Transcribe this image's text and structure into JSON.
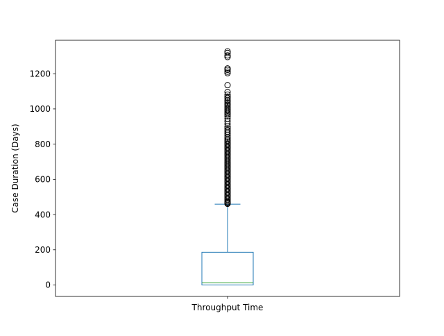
{
  "chart_data": {
    "type": "box",
    "category": "Throughput Time",
    "ylabel": "Case Duration (Days)",
    "ylim": [
      -65,
      1390
    ],
    "yticks": [
      0,
      200,
      400,
      600,
      800,
      1000,
      1200
    ],
    "box": {
      "whisker_low": 0,
      "q1": 0,
      "median": 12,
      "q3": 186,
      "whisker_high": 459
    },
    "outliers": [
      1327,
      1318,
      1304,
      1295,
      1230,
      1222,
      1212,
      1203,
      1135,
      1096,
      1081,
      1070,
      1062,
      1051,
      1043,
      1034,
      1025,
      1016,
      1008,
      999,
      992,
      984,
      976,
      968,
      958,
      945,
      930,
      915,
      900,
      890,
      880,
      870,
      860,
      850,
      840,
      830,
      820,
      812,
      804,
      796,
      788,
      780,
      772,
      764,
      756,
      748,
      740,
      732,
      724,
      716,
      708,
      700,
      692,
      684,
      676,
      668,
      660,
      652,
      644,
      636,
      628,
      620,
      612,
      604,
      596,
      588,
      580,
      572,
      564,
      556,
      548,
      540,
      532,
      524,
      516,
      508,
      500,
      492,
      484,
      476,
      470,
      465,
      461
    ],
    "colors": {
      "box": "#1f77b4",
      "median": "#2ca02c",
      "outlier": "#000000"
    },
    "grid": false
  }
}
